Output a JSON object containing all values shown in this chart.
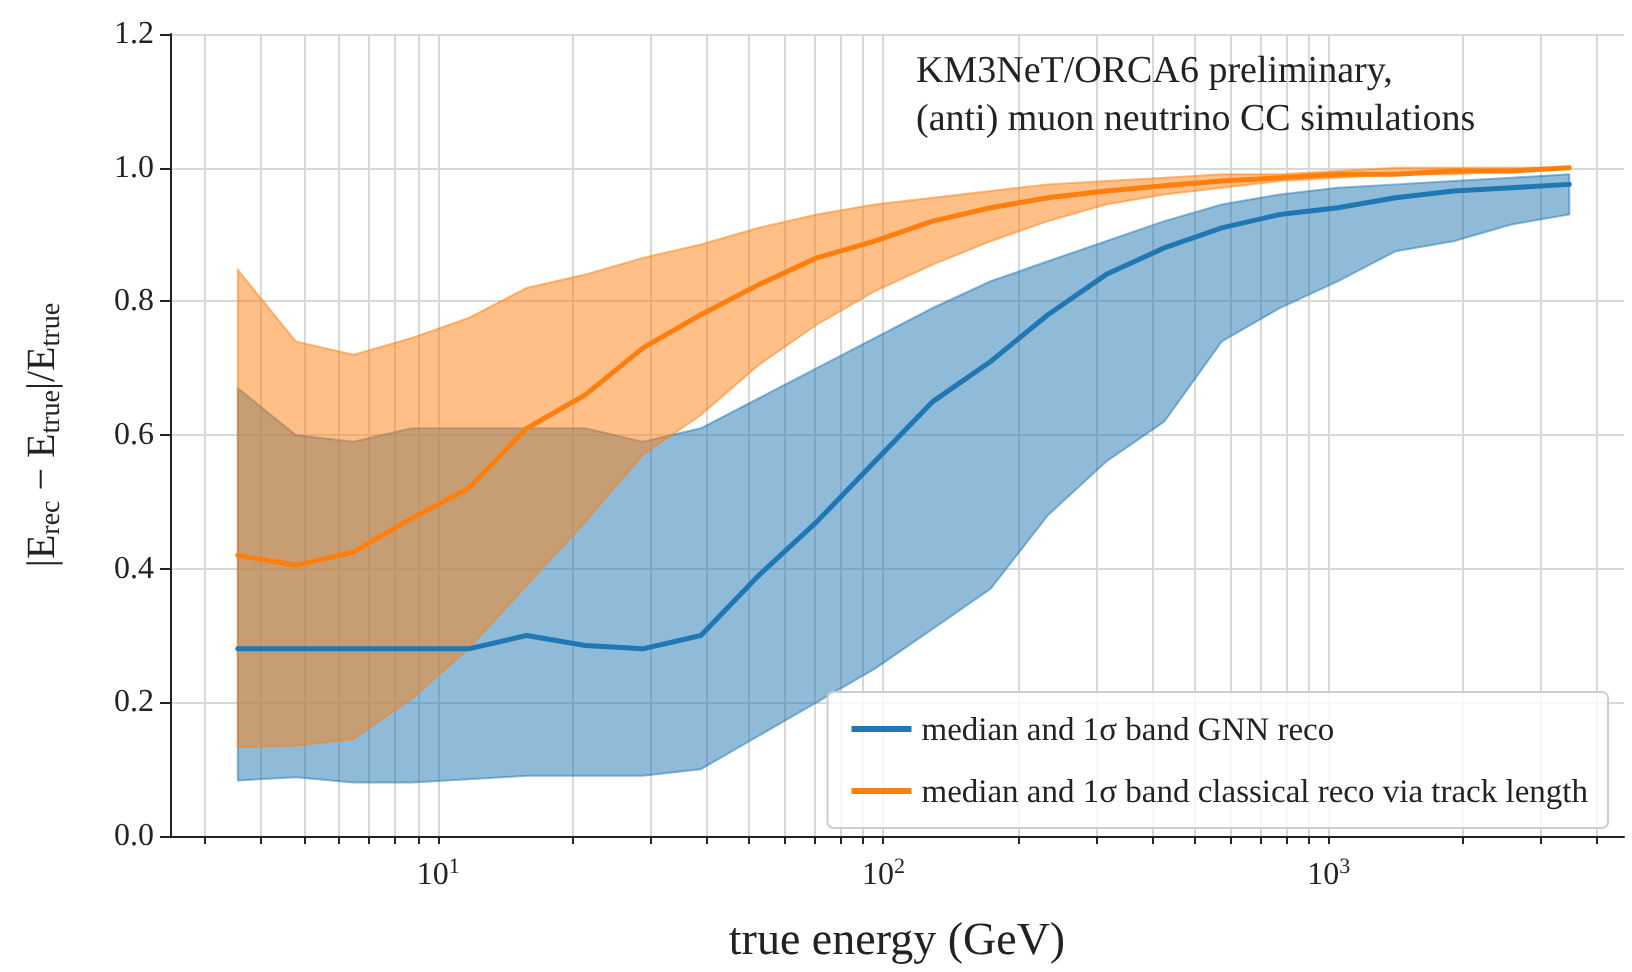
{
  "chart_data": {
    "type": "line",
    "annotations": [
      "KM3NeT/ORCA6 preliminary,",
      "(anti) muon neutrino CC simulations"
    ],
    "xlabel": "true energy (GeV)",
    "ylabel": "|E$_{rec}$ − E$_{true}$|/E$_{true}$",
    "log": "x",
    "grid": true,
    "legend": "bottom right",
    "xlim": [
      2.5,
      4600
    ],
    "xticks": [
      {
        "value": 3,
        "label": null
      },
      {
        "value": 4,
        "label": null
      },
      {
        "value": 5,
        "label": null
      },
      {
        "value": 6,
        "label": null
      },
      {
        "value": 7,
        "label": null
      },
      {
        "value": 8,
        "label": null
      },
      {
        "value": 9,
        "label": null
      },
      {
        "value": 10,
        "label": "10$^{1}$"
      },
      {
        "value": 20,
        "label": null
      },
      {
        "value": 30,
        "label": null
      },
      {
        "value": 40,
        "label": null
      },
      {
        "value": 50,
        "label": null
      },
      {
        "value": 60,
        "label": null
      },
      {
        "value": 70,
        "label": null
      },
      {
        "value": 80,
        "label": null
      },
      {
        "value": 90,
        "label": null
      },
      {
        "value": 100,
        "label": "10$^{2}$"
      },
      {
        "value": 200,
        "label": null
      },
      {
        "value": 300,
        "label": null
      },
      {
        "value": 400,
        "label": null
      },
      {
        "value": 500,
        "label": null
      },
      {
        "value": 600,
        "label": null
      },
      {
        "value": 700,
        "label": null
      },
      {
        "value": 800,
        "label": null
      },
      {
        "value": 900,
        "label": null
      },
      {
        "value": 1000,
        "label": "10$^{3}$"
      },
      {
        "value": 2000,
        "label": null
      },
      {
        "value": 3000,
        "label": null
      },
      {
        "value": 4000,
        "label": null
      }
    ],
    "ylim": [
      0,
      1.2
    ],
    "yticks": [
      {
        "value": 0,
        "label": "0.0"
      },
      {
        "value": 0.2,
        "label": "0.2"
      },
      {
        "value": 0.4,
        "label": "0.4"
      },
      {
        "value": 0.6,
        "label": "0.6"
      },
      {
        "value": 0.8,
        "label": "0.8"
      },
      {
        "value": 1,
        "label": "1.0"
      },
      {
        "value": 1.2,
        "label": "1.2"
      }
    ],
    "x": [
      3.55,
      4.79,
      6.46,
      8.71,
      11.7,
      15.8,
      21.4,
      28.8,
      38.9,
      52.5,
      70.8,
      95.5,
      129,
      174,
      234,
      316,
      427,
      575,
      776,
      1047,
      1413,
      1905,
      2570,
      3467
    ],
    "series": [
      {
        "name": "median and 1σ band GNN reco",
        "color": "#1f77b4",
        "values": [
          0.28,
          0.28,
          0.28,
          0.28,
          0.28,
          0.3,
          0.285,
          0.28,
          0.3,
          0.39,
          0.47,
          0.56,
          0.65,
          0.71,
          0.78,
          0.84,
          0.88,
          0.91,
          0.93,
          0.94,
          0.955,
          0.965,
          0.97,
          0.975
        ],
        "lower": [
          0.083,
          0.088,
          0.08,
          0.08,
          0.085,
          0.09,
          0.09,
          0.09,
          0.1,
          0.15,
          0.2,
          0.25,
          0.31,
          0.37,
          0.48,
          0.56,
          0.62,
          0.74,
          0.79,
          0.83,
          0.875,
          0.89,
          0.915,
          0.93
        ],
        "upper": [
          0.67,
          0.6,
          0.59,
          0.61,
          0.61,
          0.61,
          0.61,
          0.59,
          0.61,
          0.655,
          0.7,
          0.745,
          0.79,
          0.83,
          0.86,
          0.89,
          0.92,
          0.945,
          0.96,
          0.97,
          0.975,
          0.98,
          0.985,
          0.99
        ]
      },
      {
        "name": "median and 1σ band classical reco via track length",
        "color": "#ff7f0e",
        "values": [
          0.42,
          0.405,
          0.425,
          0.475,
          0.52,
          0.61,
          0.66,
          0.73,
          0.78,
          0.825,
          0.865,
          0.89,
          0.92,
          0.94,
          0.955,
          0.965,
          0.973,
          0.98,
          0.985,
          0.99,
          0.99,
          0.995,
          0.995,
          1.0
        ],
        "lower": [
          0.133,
          0.135,
          0.145,
          0.205,
          0.28,
          0.375,
          0.47,
          0.57,
          0.63,
          0.705,
          0.765,
          0.815,
          0.855,
          0.89,
          0.92,
          0.945,
          0.96,
          0.97,
          0.98,
          0.985,
          0.99,
          0.99,
          0.995,
          1.0
        ],
        "upper": [
          0.847,
          0.74,
          0.72,
          0.745,
          0.775,
          0.82,
          0.84,
          0.865,
          0.885,
          0.91,
          0.93,
          0.945,
          0.955,
          0.965,
          0.975,
          0.98,
          0.985,
          0.99,
          0.99,
          0.995,
          1.0,
          1.0,
          1.0,
          1.0
        ]
      }
    ]
  }
}
